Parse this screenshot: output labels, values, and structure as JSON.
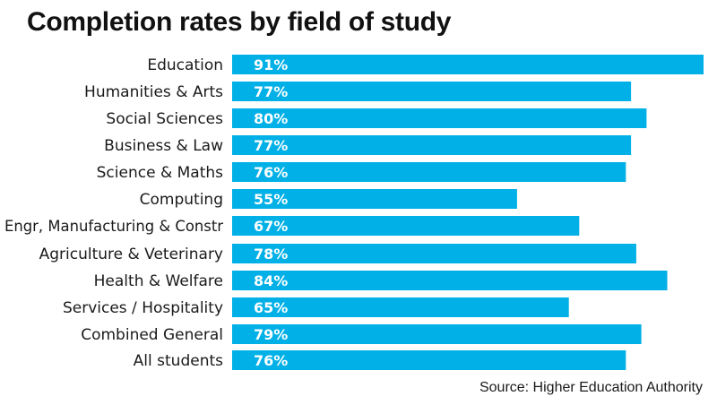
{
  "colors": {
    "bar": "#00b0e6",
    "value_text": "#ffffff",
    "label_text": "#1a1a1a"
  },
  "chart_data": {
    "type": "bar",
    "orientation": "horizontal",
    "title": "Completion rates by field of study",
    "source": "Source: Higher Education Authority",
    "xlim": [
      0,
      91
    ],
    "grid": false,
    "categories": [
      "Education",
      "Humanities & Arts",
      "Social Sciences",
      "Business & Law",
      "Science & Maths",
      "Computing",
      "Engr, Manufacturing & Constr",
      "Agriculture & Veterinary",
      "Health & Welfare",
      "Services / Hospitality",
      "Combined General",
      "All students"
    ],
    "values": [
      91,
      77,
      80,
      77,
      76,
      55,
      67,
      78,
      84,
      65,
      79,
      76
    ],
    "value_labels": [
      "91%",
      "77%",
      "80%",
      "77%",
      "76%",
      "55%",
      "67%",
      "78%",
      "84%",
      "65%",
      "79%",
      "76%"
    ]
  }
}
